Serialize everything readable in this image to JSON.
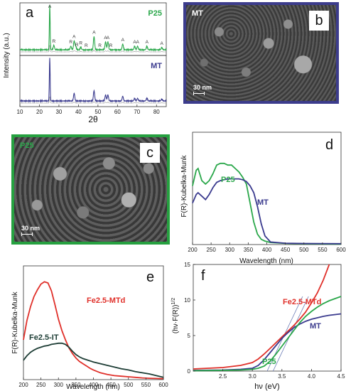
{
  "panel_letters": {
    "a": "a",
    "b": "b",
    "c": "c",
    "d": "d",
    "e": "e",
    "f": "f"
  },
  "sem_images": {
    "b": {
      "sample_label": "MT",
      "scale_bar": "30 nm"
    },
    "c": {
      "sample_label": "P25",
      "scale_bar": "30 nm"
    }
  },
  "colors": {
    "P25": "#2aa74a",
    "MT": "#3a3a8e",
    "Fe2.5-MTd": "#e0302a",
    "Fe2.5-IT": "#1d3d35"
  },
  "chart_data": [
    {
      "panel": "a",
      "type": "line",
      "xlabel": "2θ",
      "ylabel": "Intensity (a.u.)",
      "xlim": [
        10,
        85
      ],
      "xticks": [
        10,
        20,
        30,
        40,
        50,
        60,
        70,
        80
      ],
      "series": [
        {
          "name": "P25",
          "peaks": [
            [
              25.3,
              100
            ],
            [
              27.4,
              10
            ],
            [
              36.1,
              8
            ],
            [
              37.8,
              20
            ],
            [
              38.6,
              8
            ],
            [
              41.2,
              6
            ],
            [
              48.0,
              30
            ],
            [
              53.9,
              18
            ],
            [
              55.1,
              18
            ],
            [
              62.7,
              13
            ],
            [
              68.8,
              8
            ],
            [
              70.3,
              8
            ],
            [
              75.1,
              8
            ],
            [
              82.7,
              5
            ]
          ]
        },
        {
          "name": "MT",
          "peaks": [
            [
              25.3,
              100
            ],
            [
              37.8,
              18
            ],
            [
              48.0,
              24
            ],
            [
              53.9,
              14
            ],
            [
              55.1,
              14
            ],
            [
              62.7,
              11
            ],
            [
              68.8,
              6
            ],
            [
              70.3,
              6
            ],
            [
              75.1,
              7
            ],
            [
              82.7,
              4
            ]
          ]
        }
      ],
      "peak_labels": [
        {
          "text": "A",
          "x": 25.3
        },
        {
          "text": "R",
          "x": 27.4
        },
        {
          "text": "R",
          "x": 36.1
        },
        {
          "text": "A",
          "x": 37.8
        },
        {
          "text": "R",
          "x": 39.2
        },
        {
          "text": "R",
          "x": 41.2
        },
        {
          "text": "R",
          "x": 44.0
        },
        {
          "text": "A",
          "x": 48.0
        },
        {
          "text": "R",
          "x": 51.0
        },
        {
          "text": "A",
          "x": 53.9
        },
        {
          "text": "A",
          "x": 55.1
        },
        {
          "text": "R",
          "x": 56.6
        },
        {
          "text": "A",
          "x": 62.7
        },
        {
          "text": "A",
          "x": 68.8
        },
        {
          "text": "A",
          "x": 70.3
        },
        {
          "text": "A",
          "x": 75.1
        },
        {
          "text": "A",
          "x": 82.7
        }
      ]
    },
    {
      "panel": "d",
      "type": "line",
      "xlabel": "Wavelength (nm)",
      "ylabel": "F(R)-Kubelka-Munk",
      "xlim": [
        200,
        600
      ],
      "xticks": [
        200,
        250,
        300,
        350,
        400,
        450,
        500,
        550,
        600
      ],
      "ylim": [
        0,
        6.5
      ],
      "series": [
        {
          "name": "P25",
          "x": [
            200,
            210,
            215,
            225,
            235,
            245,
            255,
            265,
            275,
            285,
            295,
            305,
            315,
            325,
            335,
            345,
            355,
            365,
            375,
            385,
            395,
            410,
            450,
            500,
            600
          ],
          "y": [
            3.4,
            4.3,
            4.4,
            3.7,
            3.5,
            3.7,
            4.1,
            4.6,
            4.7,
            4.7,
            4.6,
            4.6,
            4.4,
            4.2,
            3.9,
            3.5,
            2.4,
            1.3,
            0.6,
            0.3,
            0.2,
            0.12,
            0.07,
            0.05,
            0.03
          ]
        },
        {
          "name": "MT",
          "x": [
            200,
            210,
            215,
            225,
            235,
            245,
            255,
            265,
            275,
            285,
            295,
            305,
            315,
            325,
            335,
            345,
            355,
            365,
            375,
            385,
            395,
            410,
            450,
            500,
            600
          ],
          "y": [
            2.4,
            2.9,
            3.0,
            2.8,
            2.6,
            2.9,
            3.3,
            3.6,
            3.7,
            3.75,
            3.8,
            3.8,
            3.8,
            3.8,
            3.75,
            3.65,
            3.4,
            3.0,
            2.2,
            1.2,
            0.5,
            0.15,
            0.08,
            0.06,
            0.05
          ]
        }
      ]
    },
    {
      "panel": "e",
      "type": "line",
      "xlabel": "Wavelength (nm)",
      "ylabel": "F(R)-Kubelka-Munk",
      "xlim": [
        200,
        600
      ],
      "xticks": [
        200,
        250,
        300,
        350,
        400,
        450,
        500,
        550,
        600
      ],
      "ylim": [
        0,
        10
      ],
      "series": [
        {
          "name": "Fe2.5-MTd",
          "x": [
            200,
            210,
            220,
            230,
            240,
            250,
            260,
            270,
            280,
            290,
            300,
            310,
            320,
            330,
            340,
            350,
            360,
            370,
            380,
            390,
            400,
            420,
            440,
            460,
            480,
            500,
            520,
            540,
            560,
            580,
            600
          ],
          "y": [
            3.5,
            5.2,
            6.4,
            7.3,
            7.9,
            8.4,
            8.6,
            8.5,
            7.8,
            6.6,
            5.3,
            4.3,
            3.5,
            2.8,
            2.3,
            1.9,
            1.6,
            1.4,
            1.2,
            1.0,
            0.85,
            0.6,
            0.45,
            0.35,
            0.3,
            0.25,
            0.2,
            0.15,
            0.12,
            0.1,
            0.08
          ]
        },
        {
          "name": "Fe2.5-IT",
          "x": [
            200,
            210,
            220,
            230,
            240,
            250,
            260,
            270,
            280,
            290,
            300,
            310,
            320,
            330,
            340,
            350,
            360,
            370,
            380,
            400,
            420,
            440,
            460,
            480,
            500,
            520,
            540,
            560,
            580,
            600
          ],
          "y": [
            1.7,
            2.1,
            2.4,
            2.6,
            2.75,
            2.85,
            2.95,
            3.0,
            3.1,
            3.15,
            3.2,
            3.2,
            3.1,
            2.85,
            2.5,
            2.2,
            2.0,
            1.85,
            1.75,
            1.55,
            1.4,
            1.25,
            1.1,
            0.95,
            0.85,
            0.7,
            0.6,
            0.5,
            0.35,
            0.2
          ]
        }
      ]
    },
    {
      "panel": "f",
      "type": "line",
      "xlabel": "hν (eV)",
      "ylabel": "(hν·F(R))1/2",
      "xlim": [
        2.0,
        4.5
      ],
      "xticks": [
        2.5,
        3.0,
        3.5,
        4.0,
        4.5
      ],
      "ylim": [
        0,
        15
      ],
      "yticks": [
        0,
        5,
        10,
        15
      ],
      "series": [
        {
          "name": "Fe2.5-MTd",
          "x": [
            2.0,
            2.5,
            2.8,
            3.0,
            3.1,
            3.2,
            3.3,
            3.4,
            3.5,
            3.6,
            3.7,
            3.8,
            3.9,
            4.0,
            4.1,
            4.2,
            4.3
          ],
          "y": [
            0.3,
            0.5,
            0.8,
            1.2,
            1.7,
            2.4,
            3.2,
            4.0,
            4.8,
            5.6,
            6.4,
            7.3,
            8.3,
            9.6,
            11.0,
            12.8,
            15.0
          ]
        },
        {
          "name": "MT",
          "x": [
            2.0,
            2.5,
            2.8,
            3.0,
            3.1,
            3.2,
            3.3,
            3.4,
            3.5,
            3.6,
            3.7,
            3.8,
            3.9,
            4.0,
            4.1,
            4.2,
            4.3,
            4.4,
            4.5
          ],
          "y": [
            0.1,
            0.15,
            0.25,
            0.4,
            0.8,
            1.6,
            2.6,
            3.6,
            4.6,
            5.4,
            6.1,
            6.6,
            7.0,
            7.3,
            7.5,
            7.7,
            7.85,
            7.95,
            8.05
          ]
        },
        {
          "name": "P25",
          "x": [
            2.0,
            2.5,
            2.8,
            3.0,
            3.1,
            3.2,
            3.3,
            3.4,
            3.5,
            3.6,
            3.7,
            3.8,
            3.9,
            4.0,
            4.1,
            4.2,
            4.3,
            4.4,
            4.5
          ],
          "y": [
            0.05,
            0.1,
            0.15,
            0.25,
            0.4,
            0.7,
            1.4,
            2.4,
            3.5,
            4.6,
            5.7,
            6.8,
            7.7,
            8.4,
            9.0,
            9.5,
            9.9,
            10.2,
            10.5
          ]
        }
      ],
      "tangent_lines": [
        {
          "from": [
            3.25,
            0
          ],
          "to": [
            3.85,
            10.5
          ]
        },
        {
          "from": [
            3.35,
            0
          ],
          "to": [
            3.95,
            10.5
          ]
        }
      ]
    }
  ]
}
